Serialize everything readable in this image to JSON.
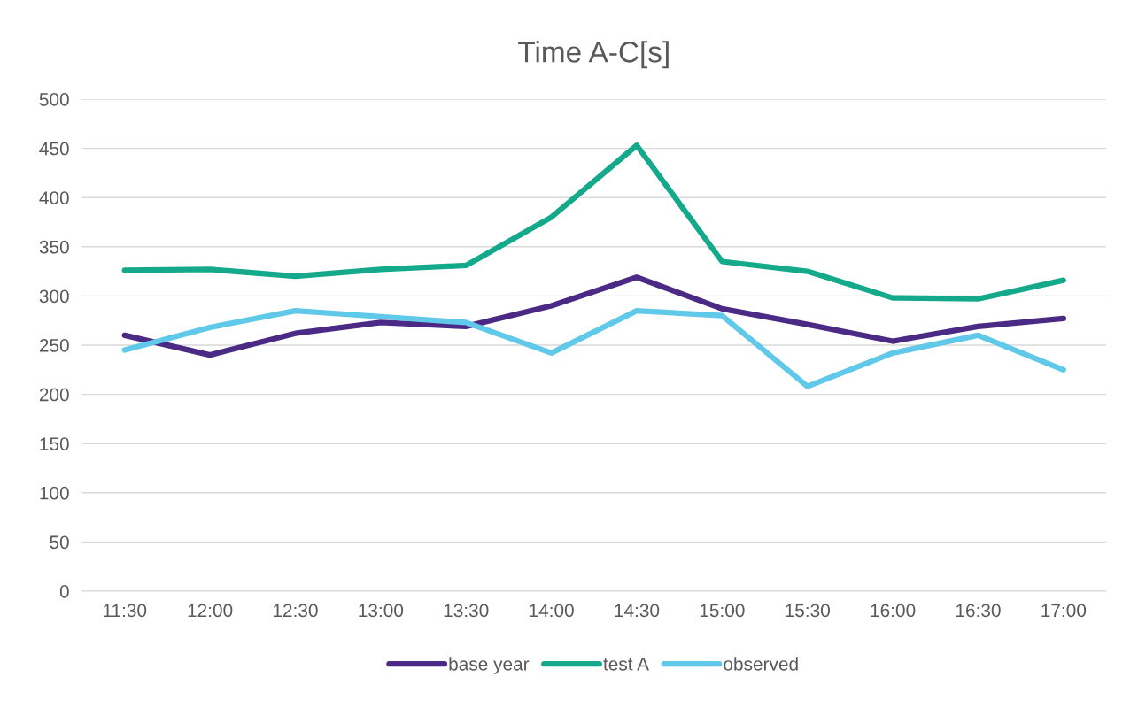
{
  "chart_data": {
    "type": "line",
    "title": "Time A-C[s]",
    "categories": [
      "11:30",
      "12:00",
      "12:30",
      "13:00",
      "13:30",
      "14:00",
      "14:30",
      "15:00",
      "15:30",
      "16:00",
      "16:30",
      "17:00"
    ],
    "series": [
      {
        "name": "base year",
        "color": "#4b2a85",
        "values": [
          260,
          240,
          262,
          273,
          269,
          290,
          319,
          287,
          271,
          254,
          269,
          277
        ]
      },
      {
        "name": "test A",
        "color": "#14a98b",
        "values": [
          326,
          327,
          320,
          327,
          331,
          380,
          453,
          335,
          325,
          298,
          297,
          316
        ]
      },
      {
        "name": "observed",
        "color": "#60c8e8",
        "values": [
          245,
          268,
          285,
          279,
          273,
          242,
          285,
          280,
          208,
          242,
          260,
          225
        ]
      }
    ],
    "ylim": [
      0,
      500
    ],
    "yticks": [
      0,
      50,
      100,
      150,
      200,
      250,
      300,
      350,
      400,
      450,
      500
    ],
    "grid": "y",
    "legend": "bottom",
    "marker": "none",
    "line_style": "solid"
  }
}
